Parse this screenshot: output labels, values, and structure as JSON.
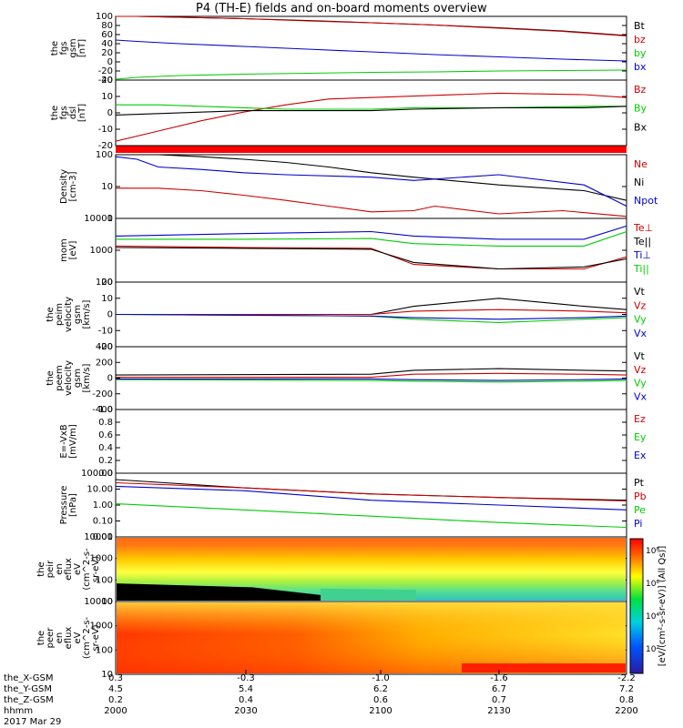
{
  "title": "P4 (TH-E) fields and on-board moments overview",
  "colors": {
    "black": "#000000",
    "red": "#cc0000",
    "green": "#00cc00",
    "blue": "#0000cc"
  },
  "chart_data": [
    {
      "type": "line",
      "ylabel": [
        "the",
        "fgs",
        "gsm",
        "[nT]"
      ],
      "yticks": [
        "100",
        "80",
        "60",
        "40",
        "20",
        "0",
        "-20",
        "-40"
      ],
      "ylim": [
        -40,
        100
      ],
      "series": [
        {
          "name": "Bt",
          "color": "black",
          "x": [
            2000,
            2005,
            2015,
            2030,
            2045,
            2100,
            2115,
            2130,
            2145,
            2200
          ],
          "y": [
            100,
            100,
            98,
            95,
            91,
            86,
            81,
            75,
            68,
            58
          ]
        },
        {
          "name": "bz",
          "color": "red",
          "x": [
            2000,
            2005,
            2015,
            2030,
            2045,
            2100,
            2115,
            2130,
            2145,
            2200
          ],
          "y": [
            100,
            100,
            98,
            95,
            90,
            86,
            81,
            74,
            67,
            57
          ]
        },
        {
          "name": "by",
          "color": "green",
          "x": [
            2000,
            2005,
            2015,
            2030,
            2045,
            2100,
            2115,
            2130,
            2145,
            2200
          ],
          "y": [
            -38,
            -34,
            -30,
            -27,
            -25,
            -23,
            -22,
            -20,
            -19,
            -18
          ]
        },
        {
          "name": "bx",
          "color": "blue",
          "x": [
            2000,
            2005,
            2015,
            2030,
            2045,
            2100,
            2115,
            2130,
            2145,
            2200
          ],
          "y": [
            48,
            45,
            40,
            34,
            28,
            22,
            16,
            11,
            6,
            2
          ]
        }
      ]
    },
    {
      "type": "line",
      "ylabel": [
        "the",
        "fgs",
        "dsl",
        "[nT]"
      ],
      "yticks": [
        "20",
        "10",
        "0",
        "-10",
        "-20"
      ],
      "ylim": [
        -25,
        20
      ],
      "series": [
        {
          "name": "Bz",
          "color": "red",
          "x": [
            2000,
            2010,
            2020,
            2030,
            2040,
            2050,
            2100,
            2110,
            2130,
            2150,
            2200
          ],
          "y": [
            -22,
            -15,
            -8,
            -2,
            3,
            7,
            8,
            9,
            11,
            10,
            8
          ]
        },
        {
          "name": "By",
          "color": "green",
          "x": [
            2000,
            2010,
            2020,
            2030,
            2040,
            2050,
            2100,
            2110,
            2130,
            2150,
            2200
          ],
          "y": [
            3,
            3,
            2,
            1,
            0,
            0,
            0,
            1,
            1,
            2,
            2
          ]
        },
        {
          "name": "Bx",
          "color": "black",
          "x": [
            2000,
            2010,
            2020,
            2030,
            2040,
            2050,
            2100,
            2110,
            2130,
            2150,
            2200
          ],
          "y": [
            -4,
            -3,
            -2,
            -1,
            -1,
            -1,
            -1,
            0,
            1,
            1,
            2
          ]
        }
      ]
    },
    {
      "type": "line",
      "ylabel": [
        "Density",
        "[cm-3]"
      ],
      "yticks": [
        "100",
        "10",
        "1"
      ],
      "log": true,
      "ylim": [
        1,
        300
      ],
      "series": [
        {
          "name": "Ne",
          "color": "red",
          "x": [
            2000,
            2010,
            2020,
            2030,
            2040,
            2050,
            2100,
            2110,
            2115,
            2130,
            2145,
            2200
          ],
          "y": [
            15,
            15,
            12,
            8,
            5,
            3,
            1.8,
            2,
            3,
            1.5,
            2,
            1.2
          ]
        },
        {
          "name": "Ni",
          "color": "black",
          "x": [
            2000,
            2010,
            2020,
            2030,
            2040,
            2050,
            2100,
            2110,
            2130,
            2150,
            2200
          ],
          "y": [
            300,
            300,
            250,
            200,
            150,
            100,
            60,
            40,
            20,
            12,
            5
          ]
        },
        {
          "name": "Npot",
          "color": "blue",
          "x": [
            2000,
            2005,
            2010,
            2020,
            2030,
            2040,
            2100,
            2110,
            2130,
            2150,
            2200
          ],
          "y": [
            250,
            200,
            100,
            80,
            60,
            50,
            40,
            30,
            50,
            20,
            3
          ]
        }
      ]
    },
    {
      "type": "line",
      "ylabel": [
        "mom",
        "[eV]"
      ],
      "yticks": [
        "10000",
        "1000",
        "100"
      ],
      "log": true,
      "ylim": [
        30,
        10000
      ],
      "series": [
        {
          "name": "Te⊥",
          "color": "red",
          "x": [
            2000,
            2030,
            2100,
            2110,
            2130,
            2150,
            2200
          ],
          "y": [
            800,
            700,
            650,
            150,
            100,
            100,
            300
          ]
        },
        {
          "name": "Te||",
          "color": "black",
          "x": [
            2000,
            2030,
            2100,
            2110,
            2130,
            2150,
            2200
          ],
          "y": [
            700,
            650,
            600,
            180,
            100,
            120,
            250
          ]
        },
        {
          "name": "Ti⊥",
          "color": "blue",
          "x": [
            2000,
            2030,
            2100,
            2110,
            2130,
            2150,
            2200
          ],
          "y": [
            2000,
            2500,
            3000,
            2000,
            1500,
            1500,
            5000
          ]
        },
        {
          "name": "Ti||",
          "color": "green",
          "x": [
            2000,
            2030,
            2100,
            2110,
            2130,
            2150,
            2200
          ],
          "y": [
            1500,
            1500,
            1600,
            1000,
            800,
            800,
            3000
          ]
        }
      ]
    },
    {
      "type": "line",
      "ylabel": [
        "the",
        "peim",
        "velocity",
        "gsm",
        "[km/s]"
      ],
      "yticks": [
        "20",
        "10",
        "0",
        "-10",
        "-20"
      ],
      "ylim": [
        -20,
        20
      ],
      "series": [
        {
          "name": "Vt",
          "color": "black",
          "x": [
            2000,
            2100,
            2110,
            2130,
            2150,
            2200
          ],
          "y": [
            0,
            0,
            5,
            10,
            5,
            3
          ]
        },
        {
          "name": "Vz",
          "color": "red",
          "x": [
            2000,
            2100,
            2110,
            2130,
            2150,
            2200
          ],
          "y": [
            0,
            0,
            2,
            3,
            2,
            1
          ]
        },
        {
          "name": "Vy",
          "color": "green",
          "x": [
            2000,
            2100,
            2110,
            2130,
            2150,
            2200
          ],
          "y": [
            0,
            -1,
            -3,
            -5,
            -3,
            -2
          ]
        },
        {
          "name": "Vx",
          "color": "blue",
          "x": [
            2000,
            2100,
            2110,
            2130,
            2150,
            2200
          ],
          "y": [
            0,
            -1,
            -2,
            -3,
            -2,
            -1
          ]
        }
      ]
    },
    {
      "type": "line",
      "ylabel": [
        "the",
        "peem",
        "velocity",
        "gsm",
        "[km/s]"
      ],
      "yticks": [
        "400",
        "200",
        "0",
        "-200",
        "-400"
      ],
      "ylim": [
        -400,
        400
      ],
      "series": [
        {
          "name": "Vt",
          "color": "black",
          "x": [
            2000,
            2100,
            2110,
            2130,
            2150,
            2200
          ],
          "y": [
            40,
            50,
            100,
            120,
            100,
            90
          ]
        },
        {
          "name": "Vz",
          "color": "red",
          "x": [
            2000,
            2100,
            2110,
            2130,
            2150,
            2200
          ],
          "y": [
            10,
            10,
            50,
            60,
            50,
            40
          ]
        },
        {
          "name": "Vy",
          "color": "green",
          "x": [
            2000,
            2100,
            2110,
            2130,
            2150,
            2200
          ],
          "y": [
            -20,
            -30,
            -40,
            -50,
            -40,
            -30
          ]
        },
        {
          "name": "Vx",
          "color": "blue",
          "x": [
            2000,
            2100,
            2110,
            2130,
            2150,
            2200
          ],
          "y": [
            -10,
            -10,
            -20,
            -30,
            -20,
            -10
          ]
        }
      ]
    },
    {
      "type": "line",
      "ylabel": [
        "E=-VxB",
        "[mV/m]"
      ],
      "yticks": [
        "1.0",
        "0.8",
        "0.6",
        "0.4",
        "0.2",
        "0.0"
      ],
      "ylim": [
        0,
        1
      ],
      "series": [
        {
          "name": "Ez",
          "color": "red",
          "x": [],
          "y": []
        },
        {
          "name": "Ey",
          "color": "green",
          "x": [],
          "y": []
        },
        {
          "name": "Ex",
          "color": "blue",
          "x": [],
          "y": []
        }
      ]
    },
    {
      "type": "line",
      "ylabel": [
        "Pressure",
        "[nPa]"
      ],
      "yticks": [
        "100.00",
        "10.00",
        "1.00",
        "0.10",
        "0.01"
      ],
      "log": true,
      "ylim": [
        0.01,
        100
      ],
      "series": [
        {
          "name": "Pt",
          "color": "black",
          "x": [
            2000,
            2030,
            2100,
            2130,
            2200
          ],
          "y": [
            40,
            12,
            5,
            3,
            2
          ]
        },
        {
          "name": "Pb",
          "color": "red",
          "x": [
            2000,
            2030,
            2100,
            2130,
            2200
          ],
          "y": [
            25,
            12,
            5,
            3,
            1.8
          ]
        },
        {
          "name": "Pe",
          "color": "green",
          "x": [
            2000,
            2030,
            2100,
            2130,
            2200
          ],
          "y": [
            1.2,
            0.5,
            0.2,
            0.08,
            0.04
          ]
        },
        {
          "name": "Pi",
          "color": "blue",
          "x": [
            2000,
            2030,
            2100,
            2130,
            2200
          ],
          "y": [
            15,
            8,
            2,
            1,
            0.5
          ]
        }
      ]
    },
    {
      "type": "heatmap",
      "ylabel": [
        "the",
        "peir",
        "en",
        "eflux",
        "eV",
        "(cm^2-s-",
        "sr-eV)"
      ],
      "yticks": [
        "10000",
        "1000",
        "100",
        "10"
      ]
    },
    {
      "type": "heatmap",
      "ylabel": [
        "the",
        "peer",
        "en",
        "eflux",
        "eV",
        "(cm^2-s-",
        "sr-eV)"
      ],
      "yticks": [
        "10000",
        "1000",
        "100",
        "10"
      ]
    }
  ],
  "colorbar": {
    "label": "[eV/(cm²-s-sr-eV)] (All Qs)]",
    "ticks": [
      "10⁸",
      "10⁶",
      "10⁴",
      "10²"
    ]
  },
  "xaxis": {
    "rows": [
      {
        "label": "the_X-GSM",
        "values": [
          "0.3",
          "-0.3",
          "-1.0",
          "-1.6",
          "-2.2"
        ]
      },
      {
        "label": "the_Y-GSM",
        "values": [
          "4.5",
          "5.4",
          "6.2",
          "6.7",
          "7.2"
        ]
      },
      {
        "label": "the_Z-GSM",
        "values": [
          "0.2",
          "0.4",
          "0.6",
          "0.7",
          "0.8"
        ]
      },
      {
        "label": "hhmm",
        "values": [
          "2000",
          "2030",
          "2100",
          "2130",
          "2200"
        ]
      }
    ],
    "date": "2017 Mar 29"
  }
}
